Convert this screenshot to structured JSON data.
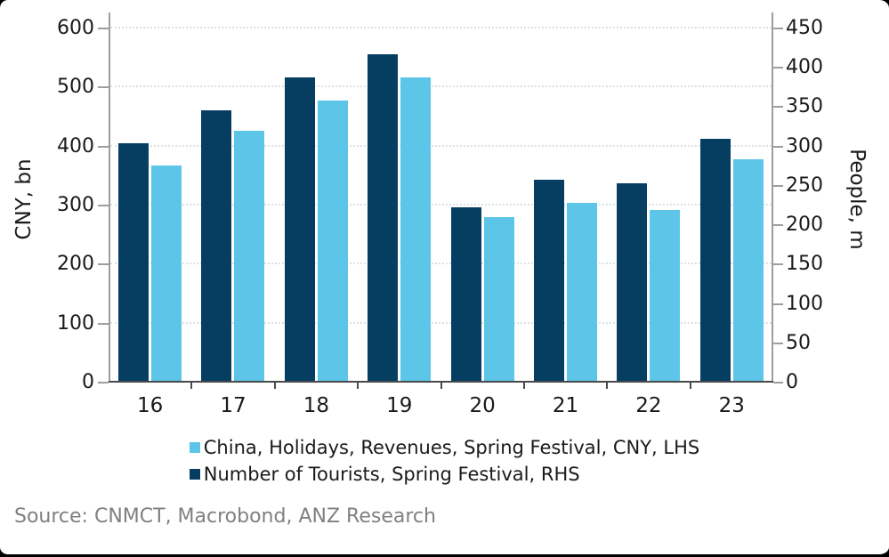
{
  "chart_data": {
    "type": "bar",
    "categories": [
      "16",
      "17",
      "18",
      "19",
      "20",
      "21",
      "22",
      "23"
    ],
    "series": [
      {
        "name": "China, Holidays, Revenues, Spring Festival, CNY, LHS",
        "axis": "left",
        "color": "#5CC5E8",
        "values": [
          365,
          423,
          475,
          514,
          278,
          301,
          289,
          376
        ]
      },
      {
        "name": "Number of Tourists, Spring Festival, RHS",
        "axis": "right",
        "color": "#063E62",
        "values": [
          302,
          344,
          386,
          415,
          221,
          256,
          251,
          308
        ]
      }
    ],
    "draw_order": [
      1,
      0
    ],
    "axes": {
      "left": {
        "label": "CNY, bn",
        "min": 0,
        "max": 600,
        "step": 100
      },
      "right": {
        "label": "People, m",
        "min": 0,
        "max": 450,
        "step": 50
      }
    },
    "grid": "horizontal-dotted",
    "legend_position": "bottom"
  },
  "source_line": "Source: CNMCT, Macrobond, ANZ Research",
  "colors": {
    "bar_light": "#5CC5E8",
    "bar_dark": "#063E62",
    "axis_line": "#9e9e9e",
    "baseline": "#4a4a4a",
    "gridline": "#d9e2e8",
    "tick_text": "#1a1a1a",
    "source_text": "#808080",
    "frame": "#000000"
  }
}
